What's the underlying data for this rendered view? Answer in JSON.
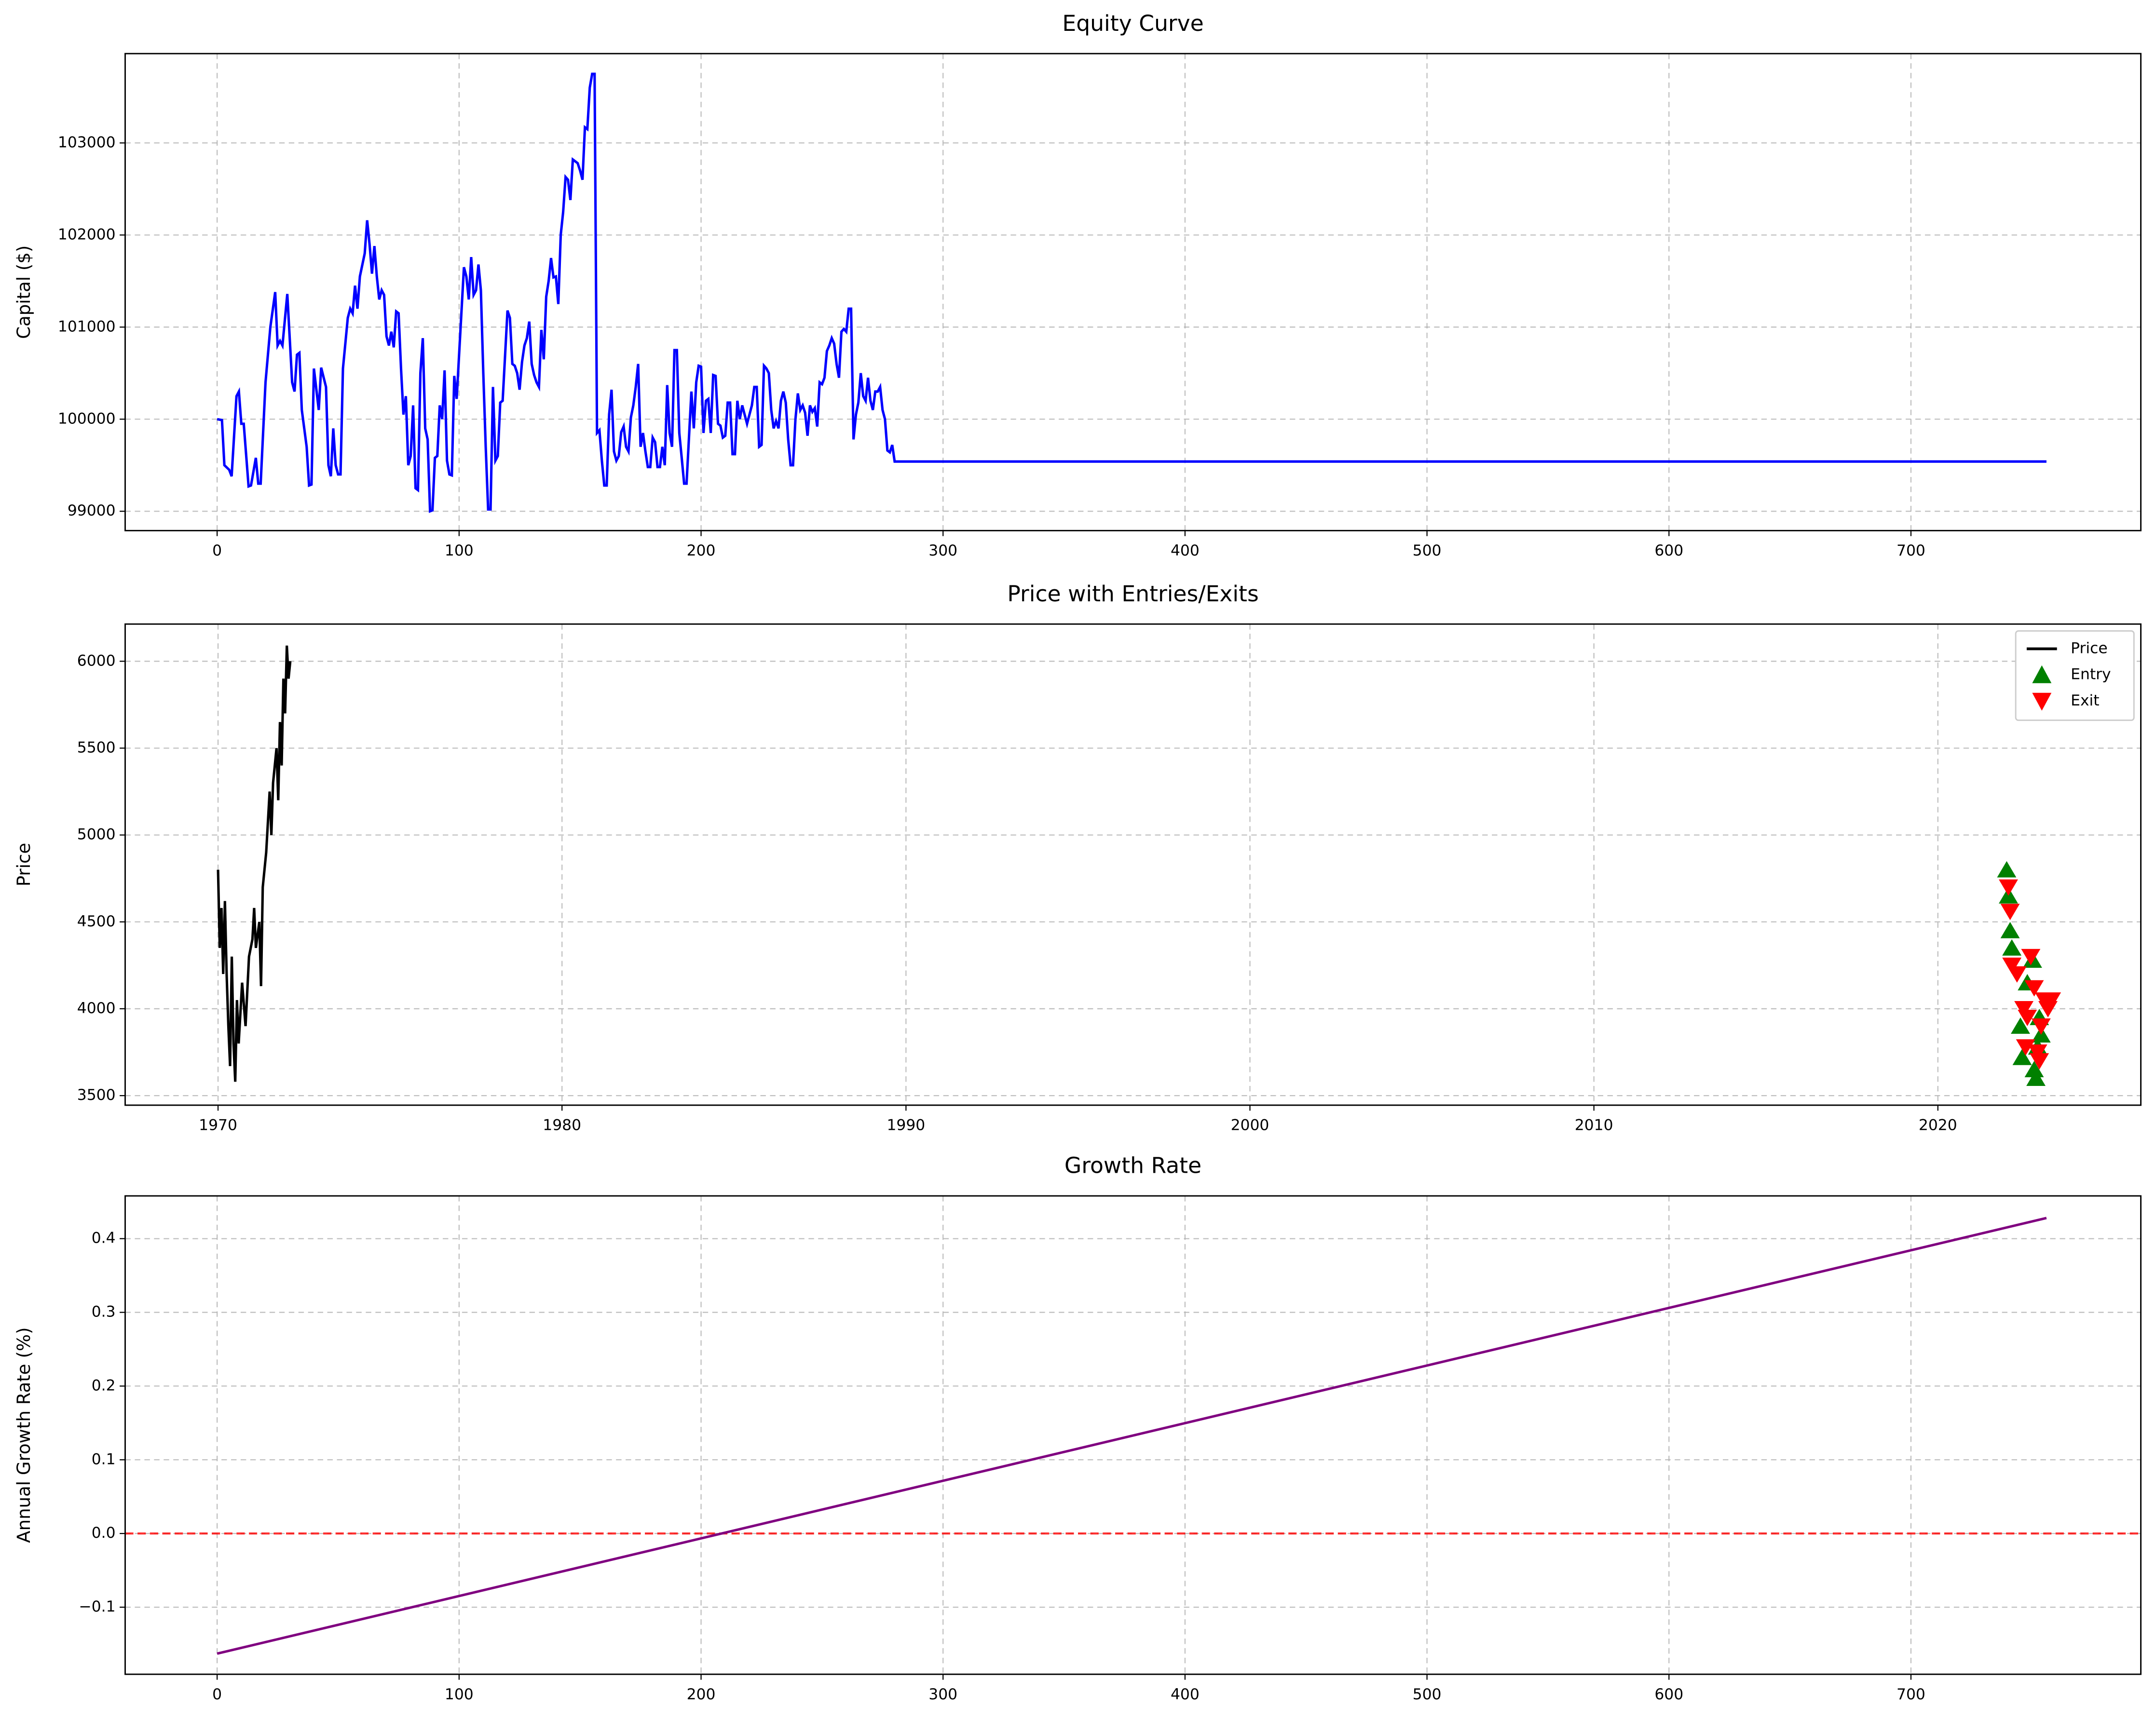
{
  "chart_data": [
    {
      "type": "line",
      "title": "Equity Curve",
      "ylabel": "Capital ($)",
      "xlim": [
        -38,
        795
      ],
      "xticks": [
        0,
        100,
        200,
        300,
        400,
        500,
        600,
        700
      ],
      "ylim": [
        98790,
        103970
      ],
      "yticks": [
        99000,
        100000,
        101000,
        102000,
        103000
      ],
      "grid": true,
      "series": [
        {
          "color": "#0000ff",
          "type": "line",
          "x": [
            0,
            2,
            3,
            5,
            6,
            8,
            9,
            10,
            11,
            13,
            14,
            16,
            17,
            18,
            20,
            22,
            24,
            25,
            26,
            27,
            29,
            31,
            32,
            33,
            34,
            35,
            37,
            38,
            39,
            40,
            42,
            43,
            45,
            46,
            47,
            48,
            49,
            50,
            51,
            52,
            54,
            55,
            56,
            57,
            58,
            59,
            61,
            62,
            63,
            64,
            65,
            66,
            67,
            68,
            69,
            70,
            71,
            72,
            73,
            74,
            75,
            76,
            77,
            78,
            79,
            80,
            81,
            82,
            83,
            84,
            85,
            86,
            87,
            88,
            89,
            90,
            91,
            92,
            93,
            94,
            95,
            96,
            97,
            98,
            99,
            100,
            102,
            103,
            104,
            105,
            106,
            107,
            108,
            109,
            110,
            111,
            112,
            113,
            114,
            115,
            116,
            117,
            118,
            120,
            121,
            122,
            123,
            124,
            125,
            126,
            127,
            128,
            129,
            130,
            131,
            132,
            133,
            134,
            135,
            136,
            137,
            138,
            139,
            140,
            141,
            142,
            143,
            144,
            145,
            146,
            147,
            148,
            149,
            150,
            151,
            152,
            153,
            154,
            155,
            156,
            157,
            158,
            159,
            160,
            161,
            162,
            163,
            164,
            165,
            166,
            167,
            168,
            169,
            170,
            171,
            172,
            173,
            174,
            175,
            176,
            177,
            178,
            179,
            180,
            181,
            182,
            183,
            184,
            185,
            186,
            187,
            188,
            189,
            190,
            191,
            192,
            193,
            194,
            195,
            196,
            197,
            198,
            199,
            200,
            201,
            202,
            203,
            204,
            205,
            206,
            207,
            208,
            209,
            210,
            211,
            212,
            213,
            214,
            215,
            216,
            217,
            218,
            219,
            220,
            221,
            222,
            223,
            224,
            225,
            226,
            227,
            228,
            229,
            230,
            231,
            232,
            233,
            234,
            235,
            236,
            237,
            238,
            239,
            240,
            241,
            242,
            243,
            244,
            245,
            246,
            247,
            248,
            249,
            250,
            251,
            252,
            253,
            254,
            255,
            256,
            257,
            258,
            259,
            260,
            261,
            262,
            263,
            264,
            265,
            266,
            267,
            268,
            269,
            270,
            271,
            272,
            273,
            274,
            275,
            276,
            277,
            278,
            279,
            280,
            287,
            756
          ],
          "values": [
            100000,
            99990,
            99500,
            99450,
            99380,
            100250,
            100300,
            99950,
            99950,
            99270,
            99280,
            99580,
            99300,
            99300,
            100400,
            101000,
            101380,
            100800,
            100850,
            100800,
            101360,
            100400,
            100300,
            100700,
            100720,
            100100,
            99700,
            99280,
            99290,
            100550,
            100100,
            100560,
            100350,
            99500,
            99380,
            99900,
            99500,
            99400,
            99400,
            100550,
            101100,
            101200,
            101150,
            101450,
            101200,
            101550,
            101800,
            102160,
            101900,
            101580,
            101880,
            101550,
            101300,
            101400,
            101350,
            100900,
            100800,
            100950,
            100780,
            101170,
            101150,
            100550,
            100050,
            100250,
            99500,
            99600,
            100150,
            99250,
            99230,
            100500,
            100880,
            99900,
            99780,
            99000,
            99010,
            99580,
            99600,
            100150,
            100000,
            100530,
            99550,
            99400,
            99390,
            100470,
            100220,
            100700,
            101650,
            101550,
            101300,
            101760,
            101350,
            101400,
            101680,
            101400,
            100500,
            99700,
            99020,
            99020,
            100350,
            99550,
            99600,
            100180,
            100200,
            101180,
            101100,
            100600,
            100580,
            100500,
            100320,
            100620,
            100800,
            100880,
            101060,
            100600,
            100480,
            100400,
            100350,
            100970,
            100650,
            101330,
            101500,
            101750,
            101540,
            101550,
            101250,
            102000,
            102250,
            102630,
            102600,
            102380,
            102820,
            102800,
            102780,
            102700,
            102600,
            103170,
            103150,
            103600,
            103750,
            103750,
            99850,
            99880,
            99550,
            99280,
            99280,
            100050,
            100320,
            99650,
            99550,
            99600,
            99860,
            99920,
            99700,
            99650,
            100020,
            100150,
            100350,
            100600,
            99700,
            99850,
            99650,
            99480,
            99480,
            99800,
            99750,
            99480,
            99480,
            99700,
            99500,
            100370,
            99850,
            99700,
            100750,
            100750,
            99850,
            99580,
            99300,
            99300,
            99800,
            100300,
            99900,
            100400,
            100580,
            100570,
            99850,
            100200,
            100220,
            99850,
            100480,
            100470,
            99950,
            99930,
            99800,
            99820,
            100180,
            100180,
            99620,
            99620,
            100200,
            100000,
            100150,
            100050,
            99950,
            100050,
            100150,
            100350,
            100350,
            99700,
            99720,
            100580,
            100550,
            100500,
            100100,
            99900,
            99980,
            99900,
            100200,
            100300,
            100180,
            99780,
            99500,
            99500,
            100000,
            100280,
            100100,
            100150,
            100070,
            99820,
            100150,
            100080,
            100120,
            99920,
            100400,
            100380,
            100450,
            100740,
            100800,
            100880,
            100820,
            100600,
            100450,
            100950,
            100980,
            100950,
            101200,
            101200,
            99780,
            100050,
            100180,
            100500,
            100250,
            100200,
            100450,
            100200,
            100100,
            100300,
            100300,
            100350,
            100100,
            100000,
            99660,
            99640,
            99720,
            99540,
            99540,
            99540
          ]
        }
      ]
    },
    {
      "type": "line",
      "title": "Price with Entries/Exits",
      "ylabel": "Price",
      "xlim": [
        1967.3,
        2025.9
      ],
      "xticks": [
        1970,
        1980,
        1990,
        2000,
        2010,
        2020
      ],
      "ylim": [
        3445,
        6214
      ],
      "yticks": [
        3500,
        4000,
        4500,
        5000,
        5500,
        6000
      ],
      "grid": true,
      "legend": "upper right",
      "series": [
        {
          "name": "Price",
          "color": "#000000",
          "type": "line",
          "x": [
            1970.0,
            1970.05,
            1970.1,
            1970.15,
            1970.2,
            1970.25,
            1970.3,
            1970.35,
            1970.4,
            1970.45,
            1970.5,
            1970.55,
            1970.6,
            1970.7,
            1970.8,
            1970.9,
            1971.0,
            1971.05,
            1971.1,
            1971.2,
            1971.25,
            1971.3,
            1971.4,
            1971.5,
            1971.55,
            1971.6,
            1971.7,
            1971.75,
            1971.8,
            1971.85,
            1971.9,
            1971.95,
            1972.0,
            1972.05,
            1972.1
          ],
          "values": [
            4800,
            4350,
            4580,
            4200,
            4620,
            4200,
            3900,
            3670,
            4300,
            3800,
            3580,
            4050,
            3800,
            4150,
            3900,
            4300,
            4400,
            4580,
            4350,
            4500,
            4130,
            4700,
            4900,
            5250,
            5000,
            5300,
            5500,
            5200,
            5650,
            5400,
            5900,
            5700,
            6090,
            5900,
            6000
          ]
        },
        {
          "name": "Entry",
          "color": "#008000",
          "type": "scatter",
          "marker": "^",
          "x": [
            2022.0,
            2022.05,
            2022.1,
            2022.15,
            2022.4,
            2022.45,
            2022.6,
            2022.75,
            2022.8,
            2022.85,
            2022.9,
            2022.95,
            2023.0
          ],
          "values": [
            4800,
            4650,
            4450,
            4350,
            3900,
            3720,
            4150,
            4280,
            3650,
            3600,
            3780,
            3950,
            3850
          ]
        },
        {
          "name": "Exit",
          "color": "#ff0000",
          "type": "scatter",
          "marker": "v",
          "x": [
            2022.05,
            2022.1,
            2022.15,
            2022.3,
            2022.5,
            2022.55,
            2022.6,
            2022.7,
            2022.8,
            2022.9,
            2022.95,
            2023.0,
            2023.1,
            2023.2,
            2023.3
          ],
          "values": [
            4700,
            4560,
            4250,
            4200,
            4000,
            3780,
            3950,
            4300,
            4120,
            3750,
            3700,
            3900,
            4050,
            4000,
            4050
          ]
        }
      ]
    },
    {
      "type": "line",
      "title": "Growth Rate",
      "ylabel": "Annual Growth Rate (%)",
      "xlim": [
        -38,
        795
      ],
      "xticks": [
        0,
        100,
        200,
        300,
        400,
        500,
        600,
        700
      ],
      "ylim": [
        -0.191,
        0.458
      ],
      "yticks": [
        {
          "value": -0.1,
          "label": "−0.1"
        },
        {
          "value": 0,
          "label": "0.0"
        },
        0.1,
        0.2,
        0.3,
        0.4
      ],
      "grid": true,
      "hlines": [
        {
          "y": 0,
          "color": "#ff0000"
        }
      ],
      "series": [
        {
          "color": "#800080",
          "type": "line",
          "x": [
            0,
            756
          ],
          "values": [
            -0.163,
            0.428
          ]
        }
      ]
    }
  ]
}
